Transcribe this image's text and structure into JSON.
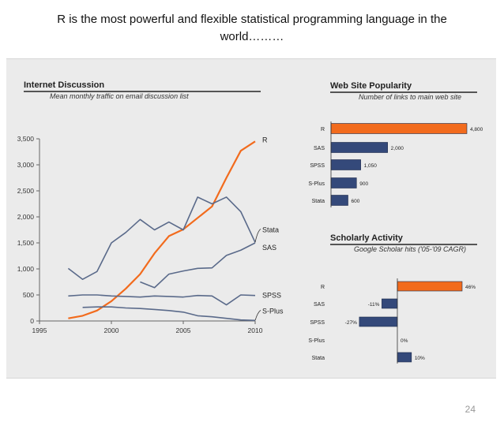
{
  "slide": {
    "title_line1": "R is the most powerful and flexible statistical programming language in the",
    "title_line2": "world………",
    "page_number": "24"
  },
  "chart_data": [
    {
      "type": "line",
      "title": "Internet Discussion",
      "subtitle": "Mean monthly traffic on email discussion list",
      "xlim": [
        1995,
        2010
      ],
      "ylim": [
        0,
        3500
      ],
      "x_ticks": [
        1995,
        2000,
        2005,
        2010
      ],
      "y_ticks": [
        0,
        500,
        1000,
        1500,
        2000,
        2500,
        3000,
        3500
      ],
      "y_tick_labels": [
        "0",
        "500",
        "1,000",
        "1,500",
        "2,000",
        "2,500",
        "3,000",
        "3,500"
      ],
      "series": [
        {
          "name": "R",
          "color": "#f26b1d",
          "x": [
            1997,
            1998,
            1999,
            2000,
            2001,
            2002,
            2003,
            2004,
            2005,
            2006,
            2007,
            2008,
            2009,
            2010
          ],
          "y": [
            50,
            100,
            200,
            380,
            620,
            900,
            1300,
            1630,
            1760,
            1980,
            2200,
            2750,
            3270,
            3450
          ]
        },
        {
          "name": "Stata",
          "color": "#5a6a8a",
          "x": [
            1997,
            1998,
            1999,
            2000,
            2001,
            2002,
            2003,
            2004,
            2005,
            2006,
            2007,
            2008,
            2009,
            2010
          ],
          "y": [
            1010,
            800,
            950,
            1500,
            1700,
            1950,
            1750,
            1900,
            1750,
            2380,
            2250,
            2380,
            2100,
            1510
          ]
        },
        {
          "name": "SAS",
          "color": "#5a6a8a",
          "x": [
            2002,
            2003,
            2004,
            2005,
            2006,
            2007,
            2008,
            2009,
            2010
          ],
          "y": [
            750,
            640,
            900,
            960,
            1010,
            1020,
            1260,
            1360,
            1500
          ]
        },
        {
          "name": "SPSS",
          "color": "#5a6a8a",
          "x": [
            1997,
            1998,
            1999,
            2000,
            2001,
            2002,
            2003,
            2004,
            2005,
            2006,
            2007,
            2008,
            2009,
            2010
          ],
          "y": [
            480,
            500,
            500,
            480,
            470,
            460,
            480,
            470,
            460,
            490,
            480,
            310,
            500,
            490
          ]
        },
        {
          "name": "S-Plus",
          "color": "#5a6a8a",
          "x": [
            1998,
            1999,
            2000,
            2001,
            2002,
            2003,
            2004,
            2005,
            2006,
            2007,
            2008,
            2009,
            2010
          ],
          "y": [
            260,
            270,
            270,
            250,
            240,
            220,
            200,
            170,
            100,
            80,
            50,
            20,
            10
          ]
        }
      ]
    },
    {
      "type": "bar",
      "orientation": "horizontal",
      "title": "Web Site Popularity",
      "subtitle": "Number of links to main web site",
      "categories": [
        "R",
        "SAS",
        "SPSS",
        "S-Plus",
        "Stata"
      ],
      "values": [
        4800,
        2000,
        1050,
        900,
        600
      ],
      "value_labels": [
        "4,800",
        "2,000",
        "1,050",
        "900",
        "600"
      ],
      "highlight": "R",
      "highlight_color": "#f26b1d",
      "bar_color": "#34497a"
    },
    {
      "type": "bar",
      "orientation": "horizontal",
      "title": "Scholarly Activity",
      "subtitle": "Google Scholar hits ('05-'09 CAGR)",
      "categories": [
        "R",
        "SAS",
        "SPSS",
        "S-Plus",
        "Stata"
      ],
      "values": [
        46,
        -11,
        -27,
        0,
        10
      ],
      "value_labels": [
        "46%",
        "-11%",
        "-27%",
        "0%",
        "10%"
      ],
      "highlight": "R",
      "highlight_color": "#f26b1d",
      "bar_color": "#34497a"
    }
  ]
}
